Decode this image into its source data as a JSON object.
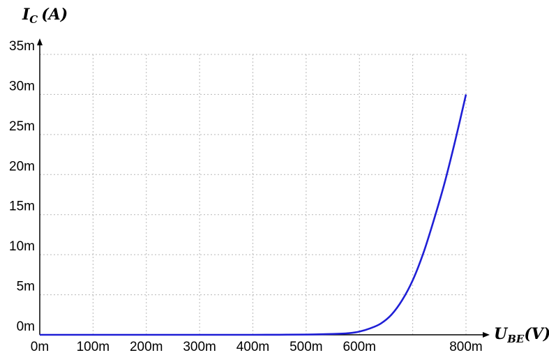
{
  "chart_data": {
    "type": "line",
    "title": "",
    "xlabel": {
      "main": "U",
      "sub": "BE",
      "unit": "(V)"
    },
    "ylabel": {
      "main": "I",
      "sub": "C",
      "unit": "(A)"
    },
    "xlim": [
      0,
      0.8
    ],
    "ylim": [
      0,
      0.035
    ],
    "grid": true,
    "x_gridlines": [
      0,
      0.1,
      0.2,
      0.3,
      0.4,
      0.5,
      0.6,
      0.7,
      0.8
    ],
    "y_gridlines": [
      0,
      0.005,
      0.01,
      0.015,
      0.02,
      0.025,
      0.03,
      0.035
    ],
    "x_ticks": [
      {
        "value": 0,
        "label": "0m"
      },
      {
        "value": 0.1,
        "label": "100m"
      },
      {
        "value": 0.2,
        "label": "200m"
      },
      {
        "value": 0.3,
        "label": "300m"
      },
      {
        "value": 0.4,
        "label": "400m"
      },
      {
        "value": 0.5,
        "label": "500m"
      },
      {
        "value": 0.6,
        "label": "600m"
      },
      {
        "value": 0.8,
        "label": "800m"
      }
    ],
    "y_ticks": [
      {
        "value": 0,
        "label": "0m"
      },
      {
        "value": 0.005,
        "label": "5m"
      },
      {
        "value": 0.01,
        "label": "10m"
      },
      {
        "value": 0.015,
        "label": "15m"
      },
      {
        "value": 0.02,
        "label": "20m"
      },
      {
        "value": 0.025,
        "label": "25m"
      },
      {
        "value": 0.03,
        "label": "30m"
      },
      {
        "value": 0.035,
        "label": "35m"
      }
    ],
    "series": [
      {
        "name": "I_C",
        "color": "#1f1fd6",
        "x": [
          0,
          0.1,
          0.2,
          0.3,
          0.4,
          0.45,
          0.5,
          0.55,
          0.58,
          0.6,
          0.62,
          0.64,
          0.66,
          0.68,
          0.7,
          0.72,
          0.74,
          0.76,
          0.78,
          0.8
        ],
        "y": [
          0,
          0,
          0,
          0,
          0,
          1e-05,
          3e-05,
          0.0001,
          0.0002,
          0.0004,
          0.0008,
          0.0014,
          0.0025,
          0.0043,
          0.0068,
          0.0102,
          0.0144,
          0.019,
          0.0243,
          0.03
        ]
      }
    ]
  }
}
